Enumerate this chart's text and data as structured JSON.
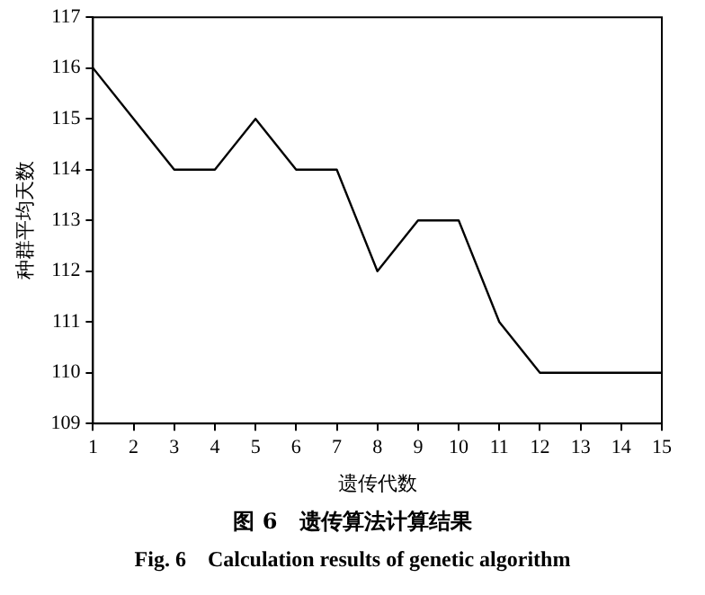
{
  "chart_data": {
    "type": "line",
    "title": "图 6　遗传算法计算结果",
    "subtitle": "Fig. 6　Calculation results of genetic algorithm",
    "xlabel": "遗传代数",
    "ylabel": "种群平均天数",
    "x": [
      1,
      2,
      3,
      4,
      5,
      6,
      7,
      8,
      9,
      10,
      11,
      12,
      13,
      14,
      15
    ],
    "series": [
      {
        "color": "#000000",
        "values": [
          116,
          115,
          114,
          114,
          115,
          114,
          114,
          112,
          113,
          113,
          111,
          110,
          110,
          110,
          110
        ]
      }
    ],
    "xlim": [
      1,
      15
    ],
    "xticks": [
      1,
      2,
      3,
      4,
      5,
      6,
      7,
      8,
      9,
      10,
      11,
      12,
      13,
      14,
      15
    ],
    "ylim": [
      109,
      117
    ],
    "yticks": [
      109,
      110,
      111,
      112,
      113,
      114,
      115,
      116,
      117
    ],
    "grid": false,
    "legend": false,
    "marker": "none",
    "line_style": "solid"
  }
}
